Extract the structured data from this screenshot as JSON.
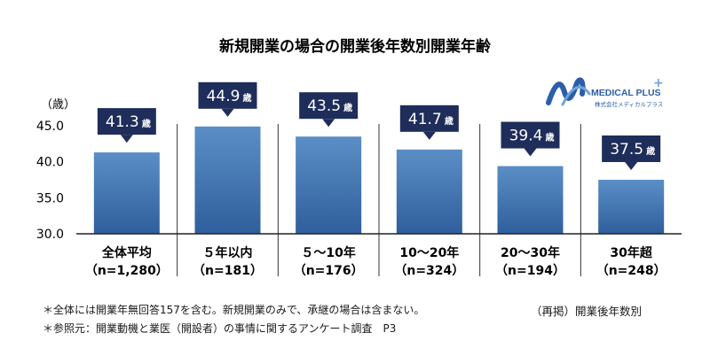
{
  "chart_data": {
    "type": "bar",
    "title": "新規開業の場合の開業後年数別開業年齢",
    "ylabel": "（歳）",
    "ylim": [
      30.0,
      45.0
    ],
    "yticks": [
      "30.0",
      "35.0",
      "40.0",
      "45.0"
    ],
    "grid": false,
    "value_suffix": "歳",
    "categories": [
      {
        "name": "全体平均",
        "n": "（n=1,280）"
      },
      {
        "name": "５年以内",
        "n": "（n=181）"
      },
      {
        "name": "５〜10年",
        "n": "（n=176）"
      },
      {
        "name": "10〜20年",
        "n": "（n=324）"
      },
      {
        "name": "20〜30年",
        "n": "（n=194）"
      },
      {
        "name": "30年超",
        "n": "（n=248）"
      }
    ],
    "values": [
      41.3,
      44.9,
      43.5,
      41.7,
      39.4,
      37.5
    ],
    "value_labels": [
      "41.3",
      "44.9",
      "43.5",
      "41.7",
      "39.4",
      "37.5"
    ],
    "colors": {
      "bar_top": "#5b8ec6",
      "bar_bottom": "#2f5f9c",
      "callout": "#1e2d5a",
      "axis": "#222222"
    }
  },
  "notes": {
    "line1": "＊全体には開業年無回答157を含む。新規開業のみで、承継の場合は含まない。",
    "line2": "＊参照元：開業動機と業医（開設者）の事情に関するアンケート調査　P3",
    "source_right": "（再掲）開業後年数別"
  },
  "logo": {
    "brand": "MEDICAL PLUS",
    "plus": "+",
    "sub": "株式会社メディカルプラス",
    "color": "#2b5ea8"
  }
}
